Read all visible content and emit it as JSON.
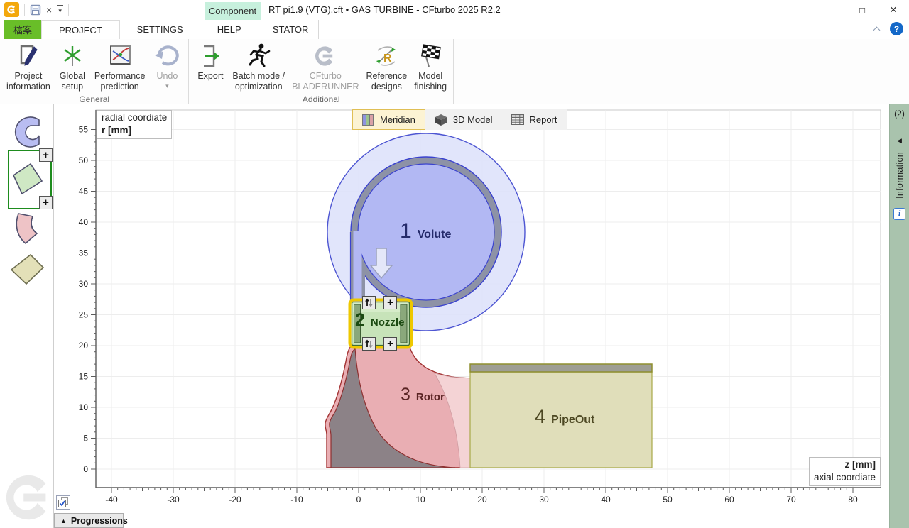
{
  "window": {
    "title": "RT pi1.9 (VTG).cft • GAS TURBINE - CFturbo 2025 R2.2",
    "controls": {
      "minimize": "—",
      "maximize": "□",
      "close": "×",
      "help": "?"
    }
  },
  "menu": {
    "file_tab": "檔案",
    "tabs": [
      {
        "label": "PROJECT"
      },
      {
        "label": "SETTINGS"
      },
      {
        "label": "HELP"
      }
    ],
    "context_group": "Component",
    "context_tab": "STATOR"
  },
  "ribbon": {
    "groups": [
      {
        "name": "General",
        "buttons": [
          {
            "line1": "Project",
            "line2": "information"
          },
          {
            "line1": "Global",
            "line2": "setup"
          },
          {
            "line1": "Performance",
            "line2": "prediction"
          },
          {
            "line1": "Undo",
            "line2": "",
            "caret": "▾"
          }
        ]
      },
      {
        "name": "Additional",
        "buttons": [
          {
            "line1": "Export",
            "line2": ""
          },
          {
            "line1": "Batch mode /",
            "line2": "optimization"
          },
          {
            "line1": "CFturbo",
            "line2": "BLADERUNNER"
          },
          {
            "line1": "Reference",
            "line2": "designs"
          },
          {
            "line1": "Model",
            "line2": "finishing"
          }
        ]
      }
    ]
  },
  "view_tabs": [
    {
      "label": "Meridian"
    },
    {
      "label": "3D Model"
    },
    {
      "label": "Report"
    }
  ],
  "chart": {
    "y_axis": {
      "title": "radial coordiate",
      "unit": "r [mm]",
      "min": 0,
      "max": 55,
      "ticks": [
        0,
        5,
        10,
        15,
        20,
        25,
        30,
        35,
        40,
        45,
        50,
        55
      ]
    },
    "x_axis": {
      "title": "axial coordiate",
      "unit": "z [mm]",
      "min": -40,
      "max": 80,
      "ticks": [
        -40,
        -30,
        -20,
        -10,
        0,
        10,
        20,
        30,
        40,
        50,
        60,
        70,
        80
      ]
    },
    "components": [
      {
        "index": "1",
        "name": "Volute"
      },
      {
        "index": "2",
        "name": "Nozzle"
      },
      {
        "index": "3",
        "name": "Rotor"
      },
      {
        "index": "4",
        "name": "PipeOut"
      }
    ],
    "nozzle_controls": {
      "add_glyph": "+"
    }
  },
  "right_panel": {
    "badge": "(2)",
    "collapse_icon": "◀",
    "label": "Information",
    "info_glyph": "i"
  },
  "bottom_bar": {
    "collapse_icon": "▲",
    "progressions_label": "Progressions"
  },
  "colors": {
    "accent_green_tab": "#69be28",
    "component_badge": "#c7f0dd",
    "selected_view_tab": "#fcf3d3",
    "volute_fill": "#b2b8f3",
    "nozzle_fill": "#c7e3b9",
    "nozzle_selection": "#eec800",
    "rotor_fill": "#e9aeb3",
    "hub_fill": "#8c8287",
    "pipeout_fill": "#e0deba",
    "right_panel": "#a9c3ad"
  }
}
